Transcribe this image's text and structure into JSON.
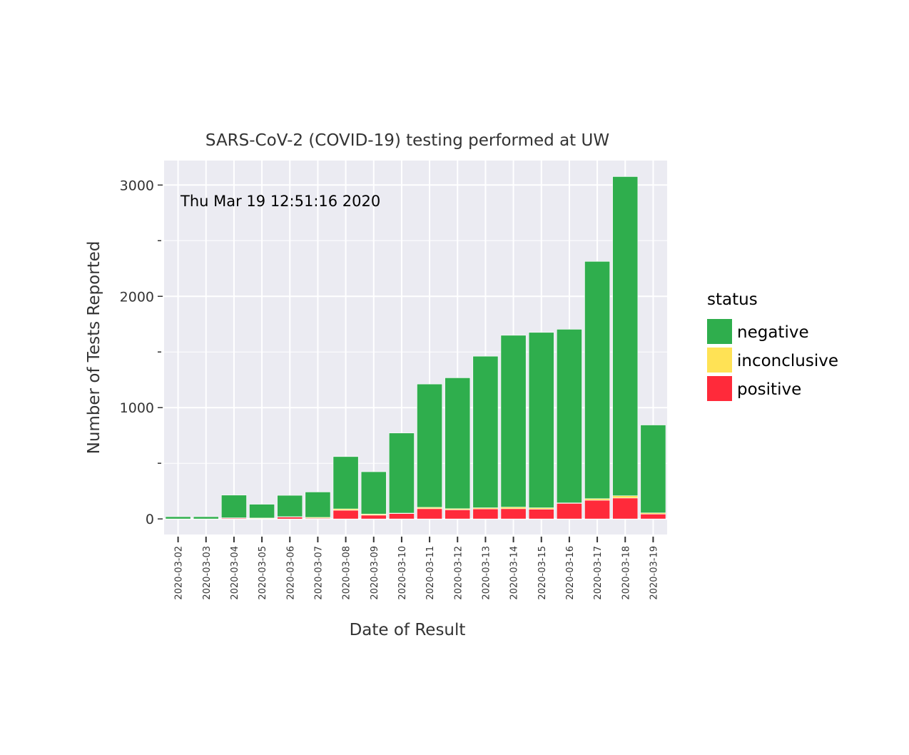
{
  "chart_data": {
    "type": "bar",
    "stacked": true,
    "title": "SARS-CoV-2 (COVID-19) testing performed at UW",
    "xlabel": "Date of Result",
    "ylabel": "Number of Tests Reported",
    "annotation": "Thu Mar 19 12:51:16 2020",
    "ylim": [
      -140,
      3220
    ],
    "yticks": [
      0,
      1000,
      2000,
      3000
    ],
    "ytick_labels": [
      "0",
      "1000",
      "2000",
      "3000"
    ],
    "yminor_ticks": [
      500,
      1500,
      2500
    ],
    "grid": true,
    "legend_title": "status",
    "legend_position": "right",
    "categories": [
      "2020-03-02",
      "2020-03-03",
      "2020-03-04",
      "2020-03-05",
      "2020-03-06",
      "2020-03-07",
      "2020-03-08",
      "2020-03-09",
      "2020-03-10",
      "2020-03-11",
      "2020-03-12",
      "2020-03-13",
      "2020-03-14",
      "2020-03-15",
      "2020-03-16",
      "2020-03-17",
      "2020-03-18",
      "2020-03-19"
    ],
    "series": [
      {
        "name": "positive",
        "color": "#ff2a3a",
        "values": [
          0,
          0,
          8,
          2,
          18,
          6,
          78,
          34,
          48,
          92,
          82,
          90,
          92,
          88,
          140,
          168,
          188,
          44
        ]
      },
      {
        "name": "inconclusive",
        "color": "#ffe255",
        "values": [
          0,
          0,
          2,
          6,
          2,
          8,
          12,
          10,
          4,
          12,
          10,
          10,
          14,
          12,
          4,
          14,
          20,
          10
        ]
      },
      {
        "name": "negative",
        "color": "#2fae4d",
        "values": [
          20,
          20,
          204,
          124,
          192,
          228,
          470,
          380,
          720,
          1108,
          1176,
          1362,
          1544,
          1576,
          1560,
          2132,
          2868,
          790
        ]
      }
    ],
    "legend_order": [
      "negative",
      "inconclusive",
      "positive"
    ]
  },
  "colors": {
    "panel_bg": "#ebebf2",
    "grid": "#ffffff"
  }
}
